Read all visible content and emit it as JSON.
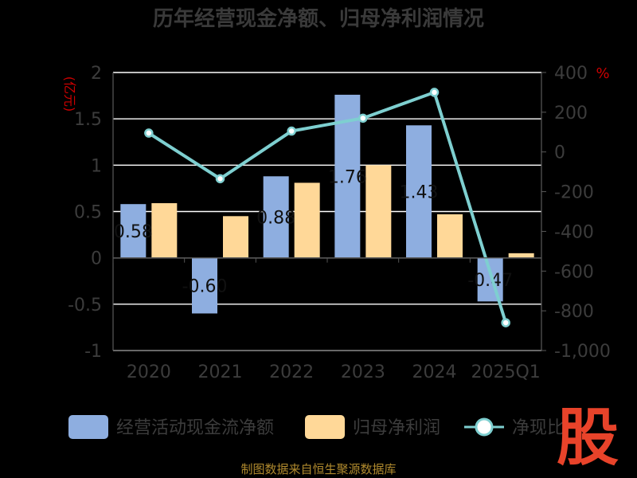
{
  "title": "历年经营现金净额、归母净利润情况",
  "left_unit": "(亿元)",
  "right_unit": "%",
  "source": "制图数据来自恒生聚源数据库",
  "brand": "股",
  "colors": {
    "cashflow": "#8eaee0",
    "profit": "#ffd898",
    "ratio_line": "#7ecfd0",
    "grid": "#ffffff",
    "background": "#000000"
  },
  "chart_data": {
    "type": "bar",
    "categories": [
      "2020",
      "2021",
      "2022",
      "2023",
      "2024",
      "2025Q1"
    ],
    "series": [
      {
        "name": "经营活动现金流净额",
        "type": "bar",
        "axis": "left",
        "values": [
          0.58,
          -0.6,
          0.88,
          1.76,
          1.43,
          -0.47
        ],
        "labels": [
          "0.58",
          "-0.60",
          "0.88",
          "1.76",
          "1.43",
          "-0.47"
        ]
      },
      {
        "name": "归母净利润",
        "type": "bar",
        "axis": "left",
        "values": [
          0.59,
          0.45,
          0.81,
          1.0,
          0.47,
          0.05
        ]
      },
      {
        "name": "净现比",
        "type": "line",
        "axis": "right",
        "values": [
          95,
          -135,
          105,
          170,
          300,
          -860
        ]
      }
    ],
    "y_left": {
      "min": -1,
      "max": 2,
      "ticks": [
        "2",
        "1.5",
        "1",
        "0.5",
        "0",
        "-0.5",
        "-1"
      ]
    },
    "y_right": {
      "min": -1000,
      "max": 400,
      "ticks": [
        "400",
        "200",
        "0",
        "-200",
        "-400",
        "-600",
        "-800",
        "-1,000"
      ]
    },
    "grid": true,
    "legend": "bottom",
    "legend_items": [
      "经营活动现金流净额",
      "归母净利润",
      "净现比"
    ]
  }
}
